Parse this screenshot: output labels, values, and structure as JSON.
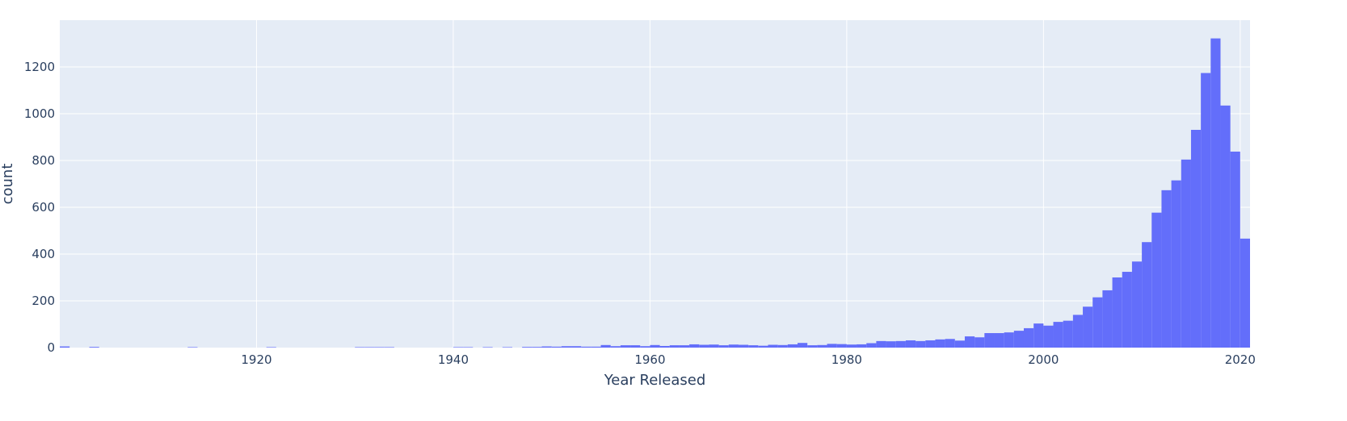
{
  "chart_data": {
    "type": "bar",
    "subtype": "histogram",
    "title": "",
    "xlabel": "Year Released",
    "ylabel": "count",
    "xlim": [
      1900,
      2021
    ],
    "ylim": [
      0,
      1400
    ],
    "bin_width": 1,
    "xticks": [
      1920,
      1940,
      1960,
      1980,
      2000,
      2020
    ],
    "yticks": [
      0,
      200,
      400,
      600,
      800,
      1000,
      1200
    ],
    "grid": true,
    "legend": "none",
    "colors": {
      "bar": "#636efa",
      "plot_background": "#e5ecf6",
      "gridline": "#ffffff",
      "text": "#2a3f5f"
    },
    "series": [
      {
        "x": [
          1900,
          1903,
          1913,
          1921,
          1930,
          1931,
          1932,
          1933,
          1940,
          1941,
          1943,
          1945,
          1947,
          1948,
          1949,
          1950,
          1951,
          1952,
          1953,
          1954,
          1955,
          1956,
          1957,
          1958,
          1959,
          1960,
          1961,
          1962,
          1963,
          1964,
          1965,
          1966,
          1967,
          1968,
          1969,
          1970,
          1971,
          1972,
          1973,
          1974,
          1975,
          1976,
          1977,
          1978,
          1979,
          1980,
          1981,
          1982,
          1983,
          1984,
          1985,
          1986,
          1987,
          1988,
          1989,
          1990,
          1991,
          1992,
          1993,
          1994,
          1995,
          1996,
          1997,
          1998,
          1999,
          2000,
          2001,
          2002,
          2003,
          2004,
          2005,
          2006,
          2007,
          2008,
          2009,
          2010,
          2011,
          2012,
          2013,
          2014,
          2015,
          2016,
          2017,
          2018,
          2019,
          2020
        ],
        "y": [
          5,
          3,
          2,
          2,
          2,
          2,
          2,
          2,
          2,
          2,
          2,
          2,
          3,
          3,
          5,
          4,
          6,
          6,
          4,
          4,
          11,
          6,
          10,
          10,
          6,
          11,
          7,
          10,
          10,
          14,
          12,
          13,
          10,
          13,
          12,
          10,
          8,
          12,
          11,
          14,
          20,
          10,
          11,
          16,
          15,
          13,
          14,
          19,
          28,
          27,
          28,
          31,
          28,
          31,
          35,
          37,
          30,
          48,
          44,
          62,
          62,
          65,
          72,
          83,
          103,
          94,
          110,
          115,
          140,
          175,
          215,
          245,
          300,
          324,
          368,
          451,
          577,
          673,
          715,
          804,
          931,
          1174,
          1322,
          1035,
          838,
          466
        ]
      }
    ]
  }
}
